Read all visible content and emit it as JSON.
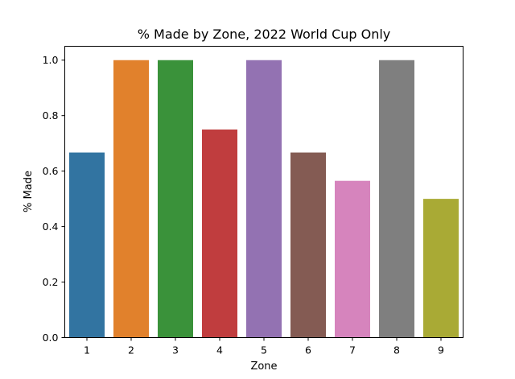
{
  "chart_data": {
    "type": "bar",
    "title": "% Made by Zone, 2022 World Cup Only",
    "xlabel": "Zone",
    "ylabel": "% Made",
    "categories": [
      "1",
      "2",
      "3",
      "4",
      "5",
      "6",
      "7",
      "8",
      "9"
    ],
    "values": [
      0.667,
      1.0,
      1.0,
      0.75,
      1.0,
      0.667,
      0.565,
      1.0,
      0.5
    ],
    "colors": [
      "#3274a1",
      "#e1812c",
      "#3a923a",
      "#c03d3e",
      "#9372b2",
      "#845b53",
      "#d684bd",
      "#7f7f7f",
      "#a9aa35"
    ],
    "ylim": [
      0,
      1.05
    ],
    "yticks": [
      "0.0",
      "0.2",
      "0.4",
      "0.6",
      "0.8",
      "1.0"
    ],
    "ytick_values": [
      0,
      0.2,
      0.4,
      0.6,
      0.8,
      1.0
    ],
    "grid": false,
    "legend": "none"
  }
}
